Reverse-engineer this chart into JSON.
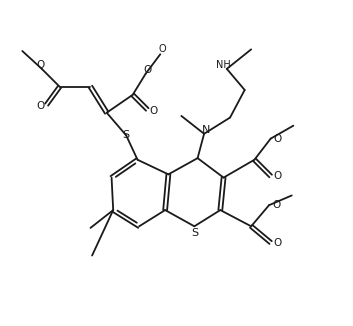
{
  "bg_color": "#ffffff",
  "line_color": "#1a1a1a",
  "line_width": 1.3,
  "fig_width": 3.53,
  "fig_height": 3.26,
  "dpi": 100,
  "xlim": [
    0,
    10
  ],
  "ylim": [
    0,
    10
  ]
}
